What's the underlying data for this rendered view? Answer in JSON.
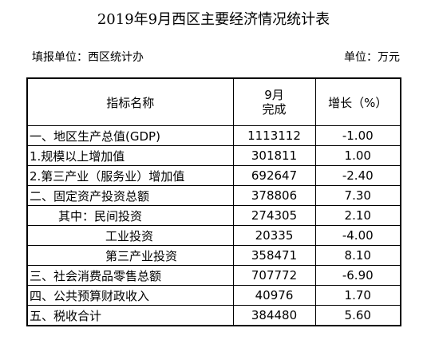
{
  "title": "2019年9月西区主要经济情况统计表",
  "reporting_unit": "填报单位：西区统计办",
  "unit": "单位：万元",
  "table": {
    "headers": {
      "name": "指标名称",
      "month_line1": "9月",
      "month_line2": "完成",
      "growth": "增长（%）"
    },
    "rows": [
      {
        "name": "一、地区生产总值(GDP)",
        "value": "1113112",
        "growth": "-1.00"
      },
      {
        "name": "1.规模以上增加值",
        "value": "301811",
        "growth": "1.00"
      },
      {
        "name": "2.第三产业（服务业）增加值",
        "value": "692647",
        "growth": "-2.40"
      },
      {
        "name": "二、固定资产投资总额",
        "value": "378806",
        "growth": "7.30"
      },
      {
        "name": "其中：民间投资",
        "value": "274305",
        "growth": "2.10"
      },
      {
        "name": "工业投资",
        "value": "20335",
        "growth": "-4.00"
      },
      {
        "name": "第三产业投资",
        "value": "358471",
        "growth": "8.10"
      },
      {
        "name": "三、社会消费品零售总额",
        "value": "707772",
        "growth": "-6.90"
      },
      {
        "name": "四、公共预算财政收入",
        "value": "40976",
        "growth": "1.70"
      },
      {
        "name": "五、税收合计",
        "value": "384480",
        "growth": "5.60"
      }
    ]
  }
}
